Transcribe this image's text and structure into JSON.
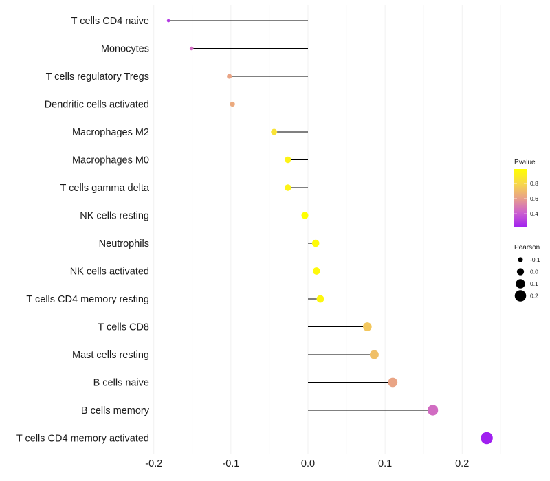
{
  "chart_data": {
    "type": "lollipop",
    "title": "",
    "xlabel": "",
    "ylabel": "",
    "xlim": [
      -0.2,
      0.25
    ],
    "x_ticks": [
      -0.2,
      -0.1,
      0.0,
      0.1,
      0.2
    ],
    "x_tick_labels": [
      "-0.2",
      "-0.1",
      "0.0",
      "0.1",
      "0.2"
    ],
    "grid": true,
    "categories": [
      "T cells CD4 naive",
      "Monocytes",
      "T cells regulatory  Tregs",
      "Dendritic cells activated",
      "Macrophages M2",
      "Macrophages M0",
      "T cells gamma delta",
      "NK cells resting",
      "Neutrophils",
      "NK cells activated",
      "T cells CD4 memory resting",
      "T cells CD8",
      "Mast cells resting",
      "B cells naive",
      "B cells memory",
      "T cells CD4 memory activated"
    ],
    "pearson": [
      -0.181,
      -0.151,
      -0.102,
      -0.098,
      -0.044,
      -0.026,
      -0.026,
      -0.004,
      0.01,
      0.011,
      0.016,
      0.077,
      0.086,
      0.11,
      0.162,
      0.232
    ],
    "pvalue": [
      0.3,
      0.45,
      0.62,
      0.64,
      0.85,
      0.93,
      0.93,
      0.99,
      0.97,
      0.96,
      0.95,
      0.74,
      0.71,
      0.62,
      0.45,
      0.22
    ],
    "legends": {
      "color": {
        "title": "Pvalue",
        "breaks": [
          0.4,
          0.6,
          0.8
        ],
        "break_labels": [
          "0.4",
          "0.6",
          "0.8"
        ],
        "range": [
          0.22,
          0.99
        ],
        "colors": [
          "#a020f0",
          "#cc5fcf",
          "#e8a08a",
          "#f7d84a",
          "#ffff00"
        ],
        "position": "right"
      },
      "size": {
        "title": "Pearson",
        "breaks": [
          -0.1,
          0.0,
          0.1,
          0.2
        ],
        "break_labels": [
          "-0.1",
          "0.0",
          "0.1",
          "0.2"
        ],
        "position": "right"
      }
    }
  }
}
